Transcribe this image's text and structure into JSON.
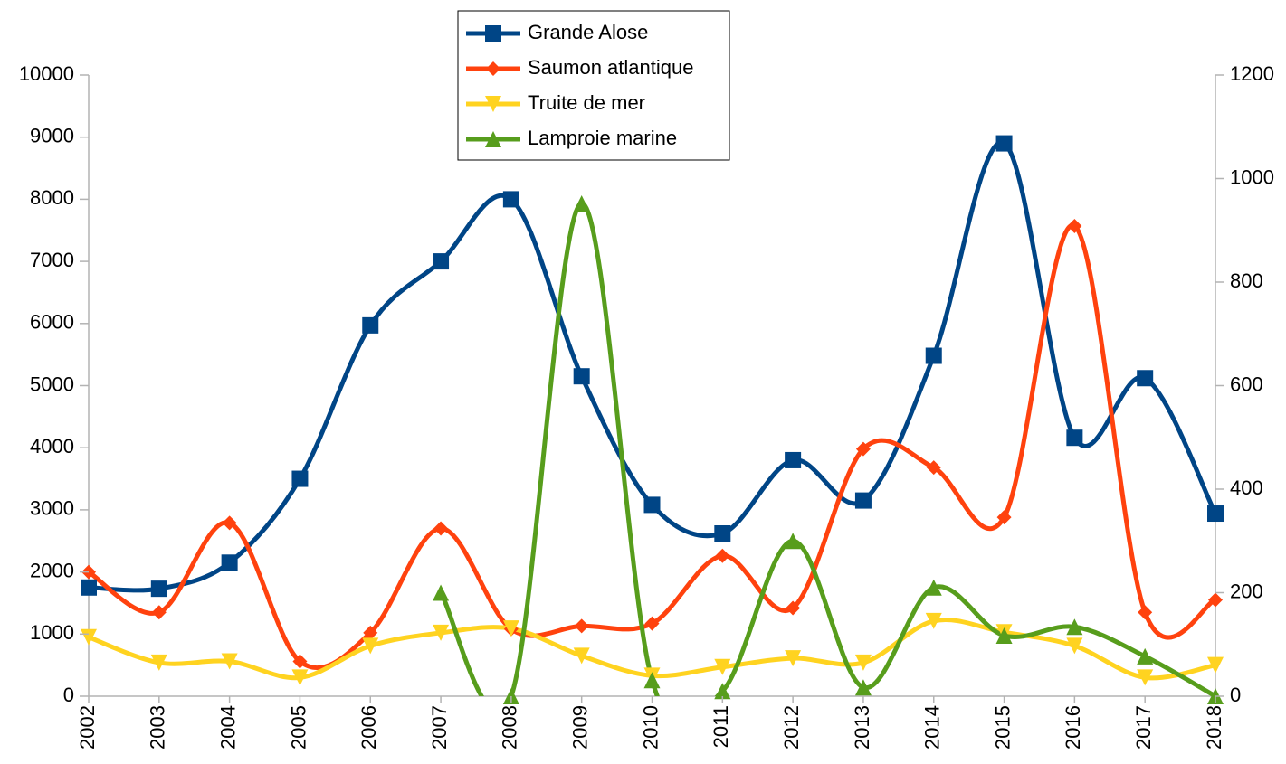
{
  "chart_data": {
    "type": "line",
    "categories": [
      "2002",
      "2003",
      "2004",
      "2005",
      "2006",
      "2007",
      "2008",
      "2009",
      "2010",
      "2011",
      "2012",
      "2013",
      "2014",
      "2015",
      "2016",
      "2017",
      "2018"
    ],
    "series": [
      {
        "name": "Grande Alose",
        "color": "#004586",
        "marker": "square",
        "values": [
          1750,
          1730,
          2150,
          3500,
          5970,
          7000,
          8000,
          5150,
          3080,
          2620,
          3800,
          3150,
          5480,
          8900,
          4160,
          5120,
          2940
        ]
      },
      {
        "name": "Saumon atlantique",
        "color": "#ff420e",
        "marker": "diamond",
        "values": [
          2000,
          1350,
          2790,
          560,
          1020,
          2700,
          1080,
          1130,
          1170,
          2260,
          1420,
          3980,
          3680,
          2880,
          7570,
          1350,
          1550
        ]
      },
      {
        "name": "Truite de mer",
        "color": "#ffd320",
        "marker": "triangle-down",
        "values": [
          950,
          540,
          560,
          300,
          810,
          1020,
          1090,
          650,
          330,
          470,
          610,
          540,
          1210,
          1030,
          810,
          300,
          500
        ]
      },
      {
        "name": "Lamproie marine",
        "color": "#579d1c",
        "marker": "triangle-up",
        "axis": "y2",
        "values": [
          null,
          null,
          null,
          null,
          null,
          200,
          0,
          952,
          31,
          10,
          300,
          17,
          210,
          117,
          134,
          77,
          0
        ]
      }
    ],
    "ylim": [
      0,
      10000
    ],
    "yticks": [
      0,
      1000,
      2000,
      3000,
      4000,
      5000,
      6000,
      7000,
      8000,
      9000,
      10000
    ],
    "y2lim": [
      0,
      1200
    ],
    "y2ticks": [
      0,
      200,
      400,
      600,
      800,
      1000,
      1200
    ],
    "smooth": true,
    "grid": false,
    "legend": "top"
  }
}
